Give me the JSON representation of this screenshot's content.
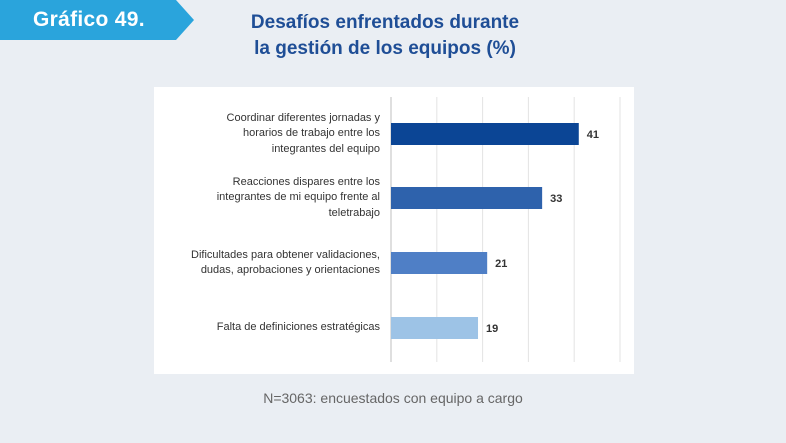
{
  "badge": {
    "label": "Gráfico 49.",
    "color": "#2aa4dc"
  },
  "title": {
    "line1": "Desafíos enfrentados durante",
    "line2": "la gestión de los equipos (%)"
  },
  "chart_data": {
    "type": "bar",
    "orientation": "horizontal",
    "categories": [
      "Coordinar diferentes jornadas y horarios de trabajo entre los integrantes del equipo",
      "Reacciones dispares entre los integrantes de mi equipo frente al teletrabajo",
      "Dificultades para obtener validaciones, dudas, aprobaciones y orientaciones",
      "Falta de definiciones estratégicas"
    ],
    "category_lines": [
      [
        "Coordinar diferentes jornadas y",
        "horarios de trabajo entre los",
        "integrantes del equipo"
      ],
      [
        "Reacciones dispares entre los",
        "integrantes de mi equipo frente al",
        "teletrabajo"
      ],
      [
        "Dificultades para obtener validaciones,",
        "dudas, aprobaciones y orientaciones"
      ],
      [
        "Falta de definiciones estratégicas"
      ]
    ],
    "values": [
      41,
      33,
      21,
      19
    ],
    "value_labels": [
      "41",
      "33",
      "21",
      "19"
    ],
    "bar_colors": [
      "#0b4595",
      "#2e62ac",
      "#4f7fc6",
      "#9dc3e6"
    ],
    "xlim": [
      0,
      50
    ],
    "grid": true,
    "legend": "none"
  },
  "footnote": "N=3063: encuestados con equipo a cargo"
}
